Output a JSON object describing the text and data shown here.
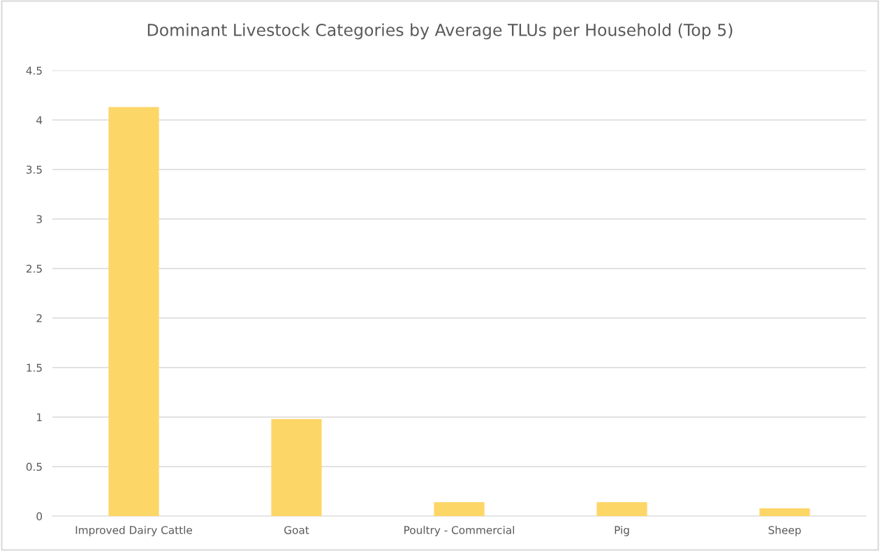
{
  "chart_data": {
    "type": "bar",
    "title": "Dominant Livestock Categories by Average TLUs per Household (Top 5)",
    "categories": [
      "Improved Dairy Cattle",
      "Goat",
      "Poultry - Commercial",
      "Pig",
      "Sheep"
    ],
    "values": [
      4.13,
      0.98,
      0.14,
      0.14,
      0.08
    ],
    "color": "#fdd668",
    "ylim": [
      0,
      4.5
    ],
    "yticks": [
      0,
      0.5,
      1,
      1.5,
      2,
      2.5,
      3,
      3.5,
      4,
      4.5
    ],
    "grid": "y"
  }
}
